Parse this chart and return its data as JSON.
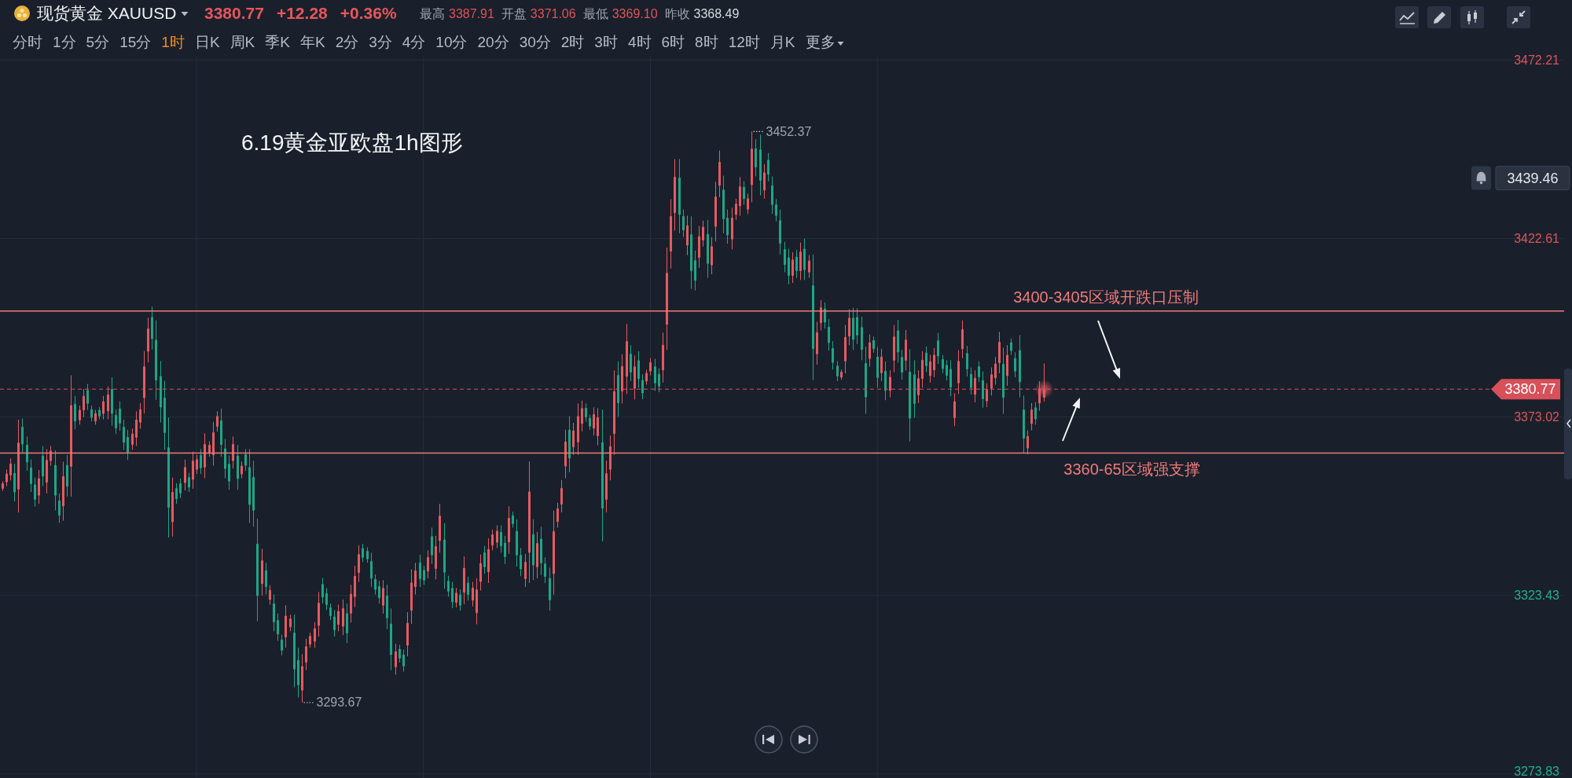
{
  "chart_data": {
    "type": "candlestick",
    "title": "现货黄金 XAUUSD",
    "subtitle": "3380.77 +12.28 +0.36%",
    "categories": [
      null,
      null,
      null,
      null,
      null,
      null,
      null,
      null,
      null,
      null,
      null,
      null,
      null,
      null,
      null,
      null,
      null,
      null,
      null,
      null,
      null,
      null,
      null,
      null,
      null,
      null,
      null,
      null,
      null,
      null,
      null,
      null,
      null,
      null,
      null,
      null,
      null,
      null,
      null,
      null,
      null,
      null,
      null,
      null,
      null,
      null,
      null,
      null,
      null,
      null,
      null,
      null,
      null,
      null,
      null,
      null,
      null,
      null,
      null,
      null,
      null,
      null,
      null,
      null,
      null,
      null,
      null,
      null,
      null,
      null,
      null,
      null,
      null,
      null,
      null,
      null,
      null,
      null,
      null,
      null,
      null,
      null,
      null,
      null,
      null,
      null,
      null,
      null,
      null,
      null,
      null,
      null,
      null,
      null,
      null,
      null,
      null,
      null,
      null,
      null,
      null,
      null,
      null,
      null,
      null,
      null,
      null,
      null,
      null,
      null,
      null,
      null,
      null,
      null,
      null,
      null,
      null,
      null,
      null,
      null,
      null,
      null,
      null,
      null,
      null,
      null,
      null,
      null,
      null,
      null,
      null,
      null,
      null,
      null,
      null,
      null,
      null,
      null,
      null,
      null,
      null,
      null,
      null,
      null,
      null,
      null,
      null,
      null,
      null,
      null,
      null,
      null,
      null,
      null,
      null,
      null,
      null,
      null,
      null,
      null,
      null,
      null,
      null,
      null,
      null,
      null,
      null,
      null,
      null,
      null,
      null,
      null,
      null,
      null,
      null,
      null,
      null,
      null,
      null,
      null,
      null,
      null,
      null,
      null,
      null,
      null,
      null,
      null,
      null,
      null,
      null,
      null,
      null,
      null,
      null,
      null,
      null,
      null,
      null,
      null,
      null,
      null,
      null,
      null,
      null,
      null,
      null,
      null,
      null,
      null,
      null,
      null,
      null,
      null,
      null,
      null,
      null,
      null,
      null,
      null,
      null,
      null,
      null,
      null,
      null,
      null,
      null,
      null,
      null,
      null,
      null,
      null,
      null,
      null,
      null,
      null,
      null,
      null,
      null,
      null,
      null,
      null,
      null,
      null,
      null,
      null,
      null,
      null,
      null,
      null,
      null,
      null,
      null,
      null,
      null,
      null,
      null,
      null,
      null,
      null,
      null,
      null,
      null,
      null,
      null,
      null,
      null,
      null,
      null,
      null,
      null,
      null,
      null,
      null,
      null,
      null,
      null,
      null,
      null,
      null,
      null,
      null,
      null,
      null,
      null,
      null,
      null,
      null,
      null,
      null,
      null,
      null,
      null,
      null,
      null,
      null,
      null,
      null,
      null,
      null,
      null,
      null,
      null,
      null,
      null,
      null,
      null,
      null,
      null,
      null,
      null,
      null,
      null,
      null,
      null,
      null,
      null,
      null,
      null,
      null,
      null,
      null,
      null,
      null,
      null,
      null,
      null,
      null,
      null,
      null,
      null,
      null,
      null,
      null,
      null,
      null,
      null,
      null,
      null,
      null,
      null,
      null,
      null,
      null,
      null,
      null,
      null,
      null,
      null,
      null,
      null,
      null,
      null,
      null,
      null,
      null,
      null,
      null,
      null,
      null,
      null,
      null,
      null,
      null,
      null,
      null,
      null,
      null,
      null,
      null,
      null,
      null,
      null,
      null,
      null,
      null,
      null,
      null,
      null,
      null,
      null,
      null,
      null,
      null,
      null,
      null
    ],
    "ohlc": [
      [
        3353.2,
        3355.2,
        3352.5,
        3354.5
      ],
      [
        3355.0,
        3358.4,
        3353.8,
        3357.2
      ],
      [
        3356.9,
        3361.5,
        3355.4,
        3360.0
      ],
      [
        3357.4,
        3360.0,
        3349.6,
        3352.2
      ],
      [
        3353.0,
        3372.3,
        3346.5,
        3365.8
      ],
      [
        3370.2,
        3372.6,
        3363.1,
        3365.5
      ],
      [
        3365.2,
        3367.6,
        3358.1,
        3360.5
      ],
      [
        3358.9,
        3361.2,
        3352.2,
        3354.5
      ],
      [
        3354.2,
        3356.2,
        3348.1,
        3350.1
      ],
      [
        3351.3,
        3358.3,
        3348.9,
        3355.9
      ],
      [
        3362.2,
        3365.0,
        3353.8,
        3356.6
      ],
      [
        3354.9,
        3364.1,
        3351.8,
        3361.0
      ],
      [
        3360.9,
        3365.0,
        3359.5,
        3363.6
      ],
      [
        3359.6,
        3363.8,
        3347.1,
        3351.3
      ],
      [
        3349.7,
        3351.8,
        3343.6,
        3345.7
      ],
      [
        3348.3,
        3360.6,
        3344.2,
        3356.5
      ],
      [
        3359.6,
        3362.5,
        3350.9,
        3353.8
      ],
      [
        3359.3,
        3384.6,
        3350.9,
        3376.2
      ],
      [
        3376.6,
        3378.9,
        3369.6,
        3371.9
      ],
      [
        3372.2,
        3376.2,
        3370.9,
        3374.9
      ],
      [
        3375.0,
        3380.8,
        3373.0,
        3378.8
      ],
      [
        3380.4,
        3382.2,
        3375.0,
        3376.8
      ],
      [
        3375.1,
        3376.2,
        3371.8,
        3372.9
      ],
      [
        3371.9,
        3375.0,
        3370.9,
        3374.0
      ],
      [
        3374.9,
        3375.8,
        3372.4,
        3373.3
      ],
      [
        3374.0,
        3378.9,
        3372.4,
        3377.3
      ],
      [
        3374.7,
        3381.5,
        3372.4,
        3379.2
      ],
      [
        3380.7,
        3384.1,
        3370.6,
        3374.0
      ],
      [
        3373.5,
        3375.2,
        3368.3,
        3370.0
      ],
      [
        3375.3,
        3377.4,
        3369.2,
        3371.3
      ],
      [
        3370.2,
        3372.3,
        3363.9,
        3366.0
      ],
      [
        3367.4,
        3369.5,
        3361.1,
        3363.2
      ],
      [
        3365.4,
        3369.8,
        3363.9,
        3368.3
      ],
      [
        3367.4,
        3374.6,
        3365.0,
        3372.2
      ],
      [
        3371.6,
        3376.9,
        3369.8,
        3375.1
      ],
      [
        3378.4,
        3391.4,
        3374.0,
        3387.0
      ],
      [
        3391.3,
        3400.6,
        3388.2,
        3397.5
      ],
      [
        3400.7,
        3403.7,
        3391.8,
        3394.8
      ],
      [
        3394.4,
        3399.9,
        3377.8,
        3383.3
      ],
      [
        3384.3,
        3388.6,
        3371.5,
        3375.8
      ],
      [
        3378.3,
        3383.1,
        3363.9,
        3368.7
      ],
      [
        3364.5,
        3372.9,
        3339.5,
        3347.9
      ],
      [
        3343.9,
        3356.2,
        3339.8,
        3352.1
      ],
      [
        3353.2,
        3354.6,
        3348.9,
        3350.3
      ],
      [
        3354.5,
        3355.9,
        3350.5,
        3351.9
      ],
      [
        3354.8,
        3361.2,
        3352.6,
        3359.0
      ],
      [
        3356.2,
        3357.5,
        3352.2,
        3353.5
      ],
      [
        3355.7,
        3363.4,
        3353.1,
        3360.8
      ],
      [
        3358.5,
        3362.5,
        3357.2,
        3361.2
      ],
      [
        3362.4,
        3364.1,
        3357.2,
        3358.9
      ],
      [
        3359.1,
        3368.5,
        3356.0,
        3365.4
      ],
      [
        3363.1,
        3366.3,
        3362.0,
        3365.2
      ],
      [
        3362.5,
        3371.7,
        3359.5,
        3368.7
      ],
      [
        3370.4,
        3374.6,
        3369.0,
        3373.2
      ],
      [
        3372.0,
        3375.4,
        3362.0,
        3365.4
      ],
      [
        3364.2,
        3366.9,
        3356.0,
        3358.7
      ],
      [
        3359.9,
        3362.3,
        3352.8,
        3355.2
      ],
      [
        3360.9,
        3367.6,
        3358.7,
        3365.4
      ],
      [
        3362.2,
        3365.3,
        3352.8,
        3355.9
      ],
      [
        3357.2,
        3360.6,
        3356.0,
        3359.4
      ],
      [
        3362.6,
        3364.1,
        3358.1,
        3359.6
      ],
      [
        3359.0,
        3364.1,
        3343.6,
        3348.7
      ],
      [
        3356.3,
        3360.9,
        3342.5,
        3347.1
      ],
      [
        3337.7,
        3344.8,
        3316.3,
        3323.4
      ],
      [
        3326.7,
        3336.4,
        3323.4,
        3333.1
      ],
      [
        3330.3,
        3332.5,
        3323.7,
        3325.9
      ],
      [
        3322.3,
        3326.3,
        3320.9,
        3324.9
      ],
      [
        3321.1,
        3323.7,
        3313.5,
        3316.1
      ],
      [
        3316.5,
        3318.4,
        3310.8,
        3312.7
      ],
      [
        3311.1,
        3312.5,
        3306.8,
        3308.2
      ],
      [
        3311.9,
        3320.7,
        3308.9,
        3317.7
      ],
      [
        3314.7,
        3318.1,
        3313.5,
        3316.9
      ],
      [
        3313.0,
        3318.1,
        3297.9,
        3303.0
      ],
      [
        3305.4,
        3308.9,
        3295.1,
        3298.6
      ],
      [
        3297.1,
        3307.1,
        3293.67,
        3303.7
      ],
      [
        3304.9,
        3311.4,
        3302.7,
        3309.2
      ],
      [
        3309.9,
        3313.1,
        3308.9,
        3312.1
      ],
      [
        3310.7,
        3316.0,
        3308.9,
        3314.2
      ],
      [
        3315.1,
        3324.4,
        3312.0,
        3321.3
      ],
      [
        3326.5,
        3328.3,
        3321.2,
        3323.0
      ],
      [
        3324.0,
        3325.5,
        3319.4,
        3320.9
      ],
      [
        3320.0,
        3321.2,
        3316.6,
        3317.8
      ],
      [
        3317.5,
        3319.4,
        3312.0,
        3313.9
      ],
      [
        3315.4,
        3320.9,
        3313.5,
        3319.0
      ],
      [
        3314.9,
        3322.3,
        3312.4,
        3319.8
      ],
      [
        3318.4,
        3321.2,
        3310.2,
        3313.0
      ],
      [
        3318.5,
        3326.4,
        3315.9,
        3323.8
      ],
      [
        3323.1,
        3331.7,
        3320.2,
        3328.8
      ],
      [
        3329.8,
        3337.4,
        3327.2,
        3334.8
      ],
      [
        3336.5,
        3337.8,
        3332.7,
        3334.0
      ],
      [
        3335.7,
        3336.8,
        3332.5,
        3333.6
      ],
      [
        3332.9,
        3335.3,
        3325.8,
        3328.2
      ],
      [
        3327.9,
        3329.3,
        3323.7,
        3325.1
      ],
      [
        3325.9,
        3327.5,
        3321.2,
        3322.8
      ],
      [
        3320.7,
        3327.7,
        3318.4,
        3325.4
      ],
      [
        3323.3,
        3326.4,
        3314.1,
        3317.2
      ],
      [
        3315.5,
        3319.8,
        3302.7,
        3307.0
      ],
      [
        3303.6,
        3310.0,
        3301.4,
        3307.8
      ],
      [
        3308.5,
        3309.7,
        3304.8,
        3306.0
      ],
      [
        3306.9,
        3308.4,
        3302.3,
        3303.8
      ],
      [
        3309.6,
        3318.8,
        3306.5,
        3315.7
      ],
      [
        3319.3,
        3330.7,
        3315.5,
        3326.9
      ],
      [
        3325.9,
        3332.5,
        3323.7,
        3330.3
      ],
      [
        3332.5,
        3334.8,
        3325.8,
        3328.1
      ],
      [
        3330.4,
        3331.7,
        3326.4,
        3327.7
      ],
      [
        3330.2,
        3336.0,
        3328.2,
        3334.0
      ],
      [
        3339.8,
        3342.3,
        3332.2,
        3334.7
      ],
      [
        3330.9,
        3340.0,
        3327.9,
        3337.0
      ],
      [
        3338.7,
        3348.9,
        3335.3,
        3345.5
      ],
      [
        3338.9,
        3343.5,
        3325.3,
        3329.9
      ],
      [
        3327.4,
        3328.9,
        3323.1,
        3324.6
      ],
      [
        3325.4,
        3327.2,
        3319.9,
        3321.7
      ],
      [
        3321.5,
        3325.5,
        3320.1,
        3324.1
      ],
      [
        3323.6,
        3325.1,
        3319.2,
        3320.7
      ],
      [
        3324.3,
        3334.3,
        3321.0,
        3331.0
      ],
      [
        3326.9,
        3328.6,
        3322.0,
        3323.7
      ],
      [
        3322.1,
        3327.2,
        3320.4,
        3325.5
      ],
      [
        3318.6,
        3328.2,
        3315.4,
        3325.0
      ],
      [
        3327.3,
        3334.8,
        3324.8,
        3332.3
      ],
      [
        3335.3,
        3337.2,
        3329.5,
        3331.4
      ],
      [
        3330.0,
        3339.3,
        3326.9,
        3336.2
      ],
      [
        3337.4,
        3341.7,
        3336.0,
        3340.3
      ],
      [
        3338.2,
        3342.9,
        3336.6,
        3341.3
      ],
      [
        3341.0,
        3342.9,
        3335.3,
        3337.2
      ],
      [
        3338.0,
        3340.0,
        3332.2,
        3334.2
      ],
      [
        3338.3,
        3348.2,
        3335.0,
        3344.9
      ],
      [
        3345.6,
        3346.7,
        3342.3,
        3343.4
      ],
      [
        3341.3,
        3344.6,
        3331.4,
        3334.7
      ],
      [
        3334.6,
        3336.6,
        3328.8,
        3330.8
      ],
      [
        3328.1,
        3335.0,
        3325.8,
        3332.7
      ],
      [
        3335.4,
        3360.7,
        3326.9,
        3352.2
      ],
      [
        3340.4,
        3344.6,
        3327.7,
        3331.9
      ],
      [
        3331.4,
        3341.1,
        3328.2,
        3337.9
      ],
      [
        3339.1,
        3342.5,
        3329.1,
        3332.5
      ],
      [
        3332.2,
        3334.0,
        3326.9,
        3328.7
      ],
      [
        3328.2,
        3331.2,
        3319.2,
        3322.2
      ],
      [
        3329.5,
        3347.0,
        3323.7,
        3341.2
      ],
      [
        3344.0,
        3349.2,
        3342.3,
        3347.5
      ],
      [
        3348.8,
        3355.5,
        3346.5,
        3353.2
      ],
      [
        3359.4,
        3369.5,
        3356.0,
        3366.1
      ],
      [
        3369.4,
        3373.3,
        3357.7,
        3361.6
      ],
      [
        3364.7,
        3371.4,
        3362.5,
        3369.2
      ],
      [
        3366.1,
        3376.8,
        3362.5,
        3373.2
      ],
      [
        3371.2,
        3377.6,
        3369.0,
        3375.4
      ],
      [
        3375.5,
        3376.8,
        3371.7,
        3373.0
      ],
      [
        3372.7,
        3373.7,
        3369.5,
        3370.5
      ],
      [
        3369.9,
        3375.7,
        3367.9,
        3373.7
      ],
      [
        3367.8,
        3375.5,
        3365.2,
        3372.9
      ],
      [
        3365.9,
        3375.1,
        3338.5,
        3347.7
      ],
      [
        3350.1,
        3360.9,
        3346.5,
        3357.3
      ],
      [
        3358.5,
        3367.9,
        3355.4,
        3364.8
      ],
      [
        3368.4,
        3386.0,
        3362.5,
        3380.1
      ],
      [
        3384.6,
        3388.5,
        3373.1,
        3377.0
      ],
      [
        3380.2,
        3390.5,
        3376.8,
        3387.1
      ],
      [
        3384.3,
        3398.9,
        3379.4,
        3394.0
      ],
      [
        3390.5,
        3393.0,
        3383.0,
        3385.5
      ],
      [
        3381.0,
        3390.1,
        3377.9,
        3387.0
      ],
      [
        3388.7,
        3391.3,
        3381.1,
        3383.7
      ],
      [
        3383.2,
        3384.9,
        3378.0,
        3379.7
      ],
      [
        3383.0,
        3386.2,
        3382.0,
        3385.2
      ],
      [
        3385.8,
        3389.4,
        3384.6,
        3388.2
      ],
      [
        3387.0,
        3389.2,
        3380.3,
        3382.5
      ],
      [
        3384.9,
        3386.6,
        3379.9,
        3381.6
      ],
      [
        3386.1,
        3396.5,
        3382.6,
        3393.0
      ],
      [
        3398.8,
        3420.1,
        3391.7,
        3413.0
      ],
      [
        3419.1,
        3433.6,
        3414.3,
        3428.8
      ],
      [
        3429.8,
        3444.7,
        3424.8,
        3439.7
      ],
      [
        3439.5,
        3444.7,
        3424.1,
        3429.3
      ],
      [
        3428.8,
        3430.7,
        3423.1,
        3425.0
      ],
      [
        3420.8,
        3429.0,
        3418.0,
        3426.2
      ],
      [
        3423.7,
        3428.8,
        3408.6,
        3413.7
      ],
      [
        3416.5,
        3419.3,
        3408.2,
        3411.0
      ],
      [
        3417.4,
        3426.1,
        3414.5,
        3423.2
      ],
      [
        3422.2,
        3427.6,
        3420.4,
        3425.8
      ],
      [
        3423.8,
        3427.8,
        3411.7,
        3415.7
      ],
      [
        3415.3,
        3423.0,
        3412.7,
        3420.4
      ],
      [
        3426.0,
        3438.4,
        3421.8,
        3434.2
      ],
      [
        3437.4,
        3447.1,
        3434.1,
        3443.8
      ],
      [
        3436.1,
        3440.1,
        3424.1,
        3428.1
      ],
      [
        3428.3,
        3430.7,
        3421.2,
        3423.6
      ],
      [
        3422.5,
        3431.2,
        3419.6,
        3428.3
      ],
      [
        3429.3,
        3433.7,
        3427.8,
        3432.2
      ],
      [
        3431.7,
        3439.7,
        3429.0,
        3437.0
      ],
      [
        3436.9,
        3438.6,
        3432.0,
        3433.7
      ],
      [
        3430.8,
        3435.1,
        3429.4,
        3433.7
      ],
      [
        3437.6,
        3452.37,
        3432.7,
        3447.5
      ],
      [
        3447.6,
        3450.2,
        3439.9,
        3442.5
      ],
      [
        3447.3,
        3451.5,
        3434.6,
        3438.8
      ],
      [
        3436.1,
        3443.3,
        3433.7,
        3440.9
      ],
      [
        3444.4,
        3446.4,
        3438.5,
        3440.5
      ],
      [
        3437.3,
        3439.9,
        3429.5,
        3432.1
      ],
      [
        3432.0,
        3433.6,
        3427.4,
        3429.0
      ],
      [
        3427.6,
        3430.7,
        3418.2,
        3421.3
      ],
      [
        3419.6,
        3421.7,
        3413.3,
        3415.4
      ],
      [
        3417.3,
        3419.8,
        3409.9,
        3412.4
      ],
      [
        3412.4,
        3418.8,
        3410.3,
        3416.7
      ],
      [
        3417.5,
        3419.5,
        3411.7,
        3413.7
      ],
      [
        3413.7,
        3421.5,
        3411.1,
        3418.9
      ],
      [
        3419.7,
        3422.6,
        3411.1,
        3414.0
      ],
      [
        3413.3,
        3418.0,
        3411.7,
        3416.4
      ],
      [
        3409.5,
        3418.2,
        3383.3,
        3392.0
      ],
      [
        3390.6,
        3399.5,
        3387.6,
        3396.5
      ],
      [
        3399.2,
        3405.5,
        3397.1,
        3403.4
      ],
      [
        3403.1,
        3404.9,
        3397.6,
        3399.4
      ],
      [
        3398.0,
        3400.2,
        3391.5,
        3393.7
      ],
      [
        3392.1,
        3394.1,
        3386.2,
        3388.2
      ],
      [
        3387.2,
        3388.6,
        3383.0,
        3384.4
      ],
      [
        3384.1,
        3386.2,
        3383.4,
        3385.5
      ],
      [
        3388.6,
        3398.6,
        3385.2,
        3395.2
      ],
      [
        3395.5,
        3403.0,
        3393.0,
        3400.5
      ],
      [
        3400.5,
        3403.4,
        3391.7,
        3394.6
      ],
      [
        3400.7,
        3403.2,
        3393.3,
        3395.8
      ],
      [
        3397.9,
        3400.9,
        3388.8,
        3391.8
      ],
      [
        3387.9,
        3392.6,
        3373.9,
        3378.6
      ],
      [
        3389.3,
        3396.0,
        3387.0,
        3393.7
      ],
      [
        3394.3,
        3395.4,
        3390.9,
        3392.0
      ],
      [
        3389.7,
        3392.5,
        3381.2,
        3384.0
      ],
      [
        3385.3,
        3392.0,
        3383.0,
        3389.7
      ],
      [
        3385.8,
        3388.5,
        3377.7,
        3380.4
      ],
      [
        3380.4,
        3386.0,
        3378.5,
        3384.1
      ],
      [
        3388.8,
        3398.6,
        3385.5,
        3395.3
      ],
      [
        3397.0,
        3400.0,
        3388.1,
        3391.1
      ],
      [
        3389.6,
        3391.7,
        3383.4,
        3385.5
      ],
      [
        3388.8,
        3397.2,
        3386.0,
        3394.4
      ],
      [
        3385.5,
        3391.9,
        3366.3,
        3372.7
      ],
      [
        3384.8,
        3388.8,
        3372.8,
        3376.8
      ],
      [
        3379.2,
        3386.0,
        3376.9,
        3383.7
      ],
      [
        3383.7,
        3391.3,
        3381.2,
        3388.8
      ],
      [
        3390.8,
        3392.6,
        3385.5,
        3387.3
      ],
      [
        3384.5,
        3390.3,
        3382.6,
        3388.4
      ],
      [
        3386.1,
        3392.2,
        3384.1,
        3390.2
      ],
      [
        3394.2,
        3396.4,
        3387.8,
        3390.0
      ],
      [
        3389.0,
        3390.3,
        3385.2,
        3386.5
      ],
      [
        3387.4,
        3388.8,
        3383.2,
        3384.6
      ],
      [
        3386.3,
        3388.8,
        3378.8,
        3381.3
      ],
      [
        3372.8,
        3379.6,
        3370.5,
        3377.3
      ],
      [
        3382.5,
        3391.6,
        3379.4,
        3388.5
      ],
      [
        3392.0,
        3399.9,
        3389.4,
        3397.3
      ],
      [
        3390.7,
        3392.8,
        3384.3,
        3386.4
      ],
      [
        3384.9,
        3386.8,
        3379.3,
        3381.2
      ],
      [
        3379.3,
        3386.0,
        3377.1,
        3383.8
      ],
      [
        3387.0,
        3388.5,
        3382.7,
        3384.2
      ],
      [
        3383.2,
        3385.7,
        3375.6,
        3378.1
      ],
      [
        3377.5,
        3382.4,
        3375.8,
        3380.7
      ],
      [
        3381.0,
        3386.8,
        3379.0,
        3384.8
      ],
      [
        3383.9,
        3389.7,
        3382.0,
        3387.8
      ],
      [
        3388.1,
        3396.7,
        3385.2,
        3393.8
      ],
      [
        3387.7,
        3392.3,
        3373.9,
        3378.5
      ],
      [
        3384.5,
        3393.0,
        3381.7,
        3390.2
      ],
      [
        3393.7,
        3394.9,
        3390.3,
        3391.5
      ],
      [
        3389.3,
        3391.0,
        3384.1,
        3385.8
      ],
      [
        3391.5,
        3395.8,
        3378.5,
        3382.8
      ],
      [
        3375.0,
        3379.0,
        3363.1,
        3367.1
      ],
      [
        3364.4,
        3369.3,
        3362.7,
        3367.6
      ],
      [
        3371.2,
        3376.9,
        3369.3,
        3375.0
      ],
      [
        3375.6,
        3377.2,
        3370.9,
        3372.5
      ],
      [
        3376.9,
        3383.0,
        3374.8,
        3380.9
      ],
      [
        3378.5,
        3387.9,
        3377.3,
        3380.77
      ],
      null,
      null,
      null,
      null,
      null,
      null,
      null,
      null,
      null,
      null,
      null,
      null,
      null,
      null,
      null,
      null,
      null,
      null,
      null,
      null,
      null,
      null,
      null,
      null,
      null,
      null,
      null,
      null,
      null,
      null,
      null,
      null,
      null,
      null,
      null,
      null,
      null,
      null,
      null,
      null,
      null,
      null,
      null,
      null,
      null,
      null,
      null,
      null,
      null,
      null,
      null,
      null,
      null,
      null,
      null,
      null,
      null,
      null,
      null,
      null,
      null,
      null,
      null,
      null,
      null,
      null,
      null,
      null,
      null,
      null,
      null,
      null,
      null,
      null,
      null,
      null,
      null,
      null,
      null,
      null,
      null,
      null,
      null,
      null,
      null,
      null,
      null,
      null,
      null,
      null,
      null,
      null,
      null,
      null,
      null,
      null,
      null,
      null,
      null,
      null,
      null,
      null,
      null,
      null,
      null,
      null,
      null,
      null,
      null,
      null,
      null,
      null,
      null,
      null,
      null,
      null,
      null,
      null,
      null,
      null,
      null,
      null,
      null,
      null,
      null,
      null,
      null,
      null
    ],
    "ylim": [
      3272.7,
      3473.2
    ],
    "yticks": [
      3472.21,
      3422.61,
      3373.02,
      3323.43,
      3273.83
    ],
    "tick_labels": "y",
    "grid": true,
    "ref_lines": [
      {
        "axis": "y",
        "value": 3402.5,
        "label": "3400-3405区域开跌口压制",
        "color": "#f07a7a"
      },
      {
        "axis": "y",
        "value": 3363.0,
        "label": "3360-65区域强支撑",
        "color": "#f07a7a"
      },
      {
        "axis": "y",
        "value": 3380.77,
        "label": "3380.77",
        "color": "#d8505a",
        "line_style": "dashed"
      }
    ],
    "annotations": [
      "最高 3387.91 开盘 3371.06 最低 3369.10 昨收 3368.49",
      "分时 1分 5分 15分 1时 日K 周K 季K 年K 2分 3分 4分 10分 20分 30分 2时 3时 4时 6时 8时 12时 月K 更多",
      "6.19黄金亚欧盘1h图形",
      "3452.37",
      "3293.67",
      "3439.46"
    ]
  }
}
